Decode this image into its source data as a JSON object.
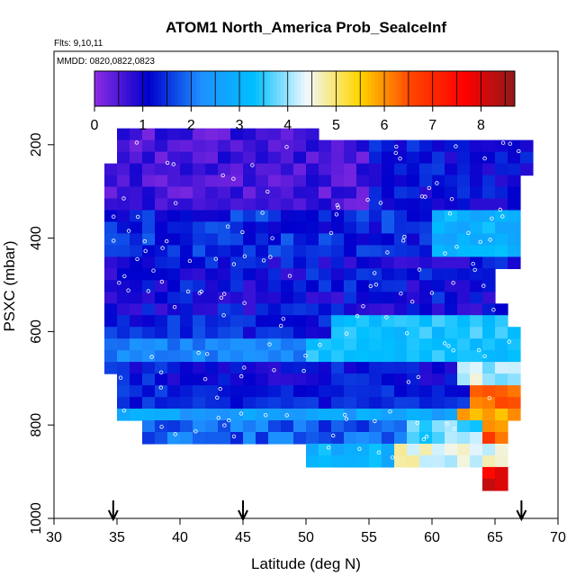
{
  "chart_data": {
    "type": "heatmap",
    "title": "ATOM1 North_America Prob_SeaIceInf",
    "subtitle_flights": "Flts: 9,10,11",
    "subtitle_dates": "MMDD: 0820,0822,0823",
    "xlabel": "Latitude (deg N)",
    "ylabel": "PSXC (mbar)",
    "xlim": [
      30,
      70
    ],
    "ylim": [
      1000,
      0
    ],
    "x_ticks": [
      "30",
      "35",
      "40",
      "45",
      "50",
      "55",
      "60",
      "65",
      "70"
    ],
    "y_ticks": [
      "200",
      "400",
      "600",
      "800",
      "1000"
    ],
    "colorbar": {
      "range": [
        0,
        8.7
      ],
      "tick_labels": [
        "0",
        "1",
        "2",
        "3",
        "4",
        "5",
        "6",
        "7",
        "8"
      ],
      "palette": [
        "#8a2be2",
        "#0000cd",
        "#1e90ff",
        "#00bfff",
        "#f0f8ff",
        "#ffd700",
        "#ff4500",
        "#ff0000",
        "#8b1a1a"
      ]
    },
    "arrow_markers_latitude": [
      34.7,
      45,
      67.1
    ],
    "colors": {
      "frame": "#000000",
      "background": "#ffffff",
      "marker": "#ffffff"
    },
    "grid": false
  }
}
